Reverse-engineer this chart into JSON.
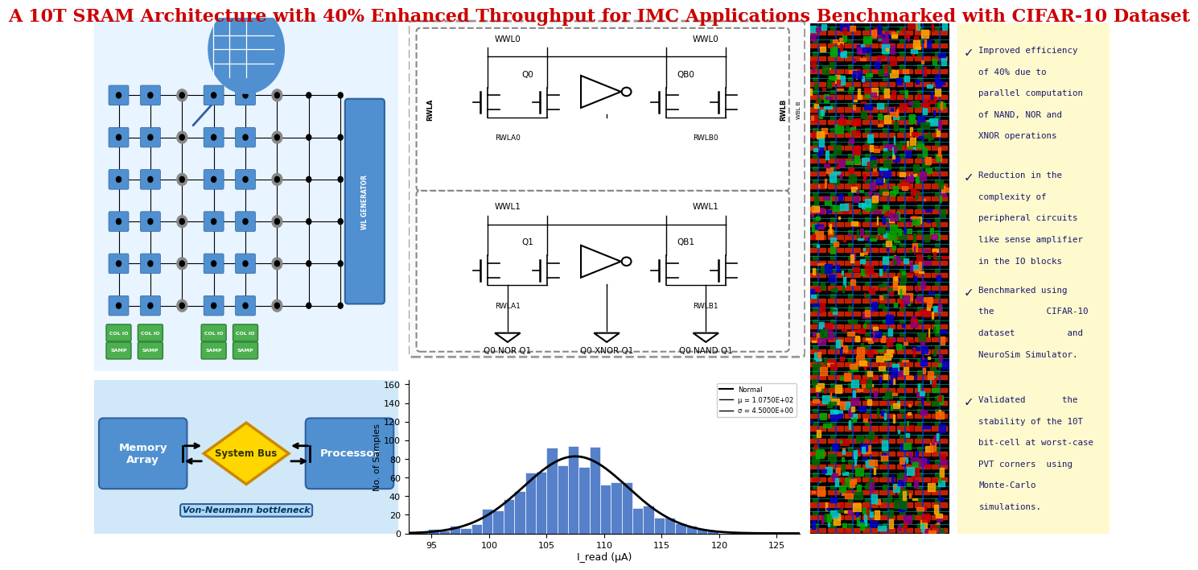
{
  "title": "A 10T SRAM Architecture with 40% Enhanced Throughput for IMC Applications Benchmarked with CIFAR-10 Dataset",
  "title_color": "#CC0000",
  "title_fontsize": 16,
  "bg_color": "#FFFFFF",
  "panel_bg": "#F0F0FF",
  "bullet_bg": "#FFFACD",
  "bullet_text_color": "#1a1a6e",
  "bullet_points": [
    [
      "Improved efficiency",
      "of 40% due to",
      "parallel computation",
      "of NAND, NOR and",
      "XNOR operations"
    ],
    [
      "Reduction in the",
      "complexity of",
      "peripheral circuits",
      "like sense amplifier",
      "in the IO blocks"
    ],
    [
      "Benchmarked using",
      "the          CIFAR-10",
      "dataset          and",
      "NeuroSim Simulator."
    ],
    [
      "Validated       the",
      "stability of the 10T",
      "bit-cell at worst-case",
      "PVT corners  using",
      "Monte-Carlo",
      "simulations."
    ]
  ],
  "hist_xlabel": "I_read (μA)",
  "hist_ylabel": "No. of Samples",
  "hist_mean": 107.5,
  "hist_std": 4.5,
  "hist_n": 1000,
  "hist_color": "#4472C4",
  "memory_array_text": "Memory\nArray",
  "processor_text": "Processor",
  "sysbus_text": "System Bus",
  "bottleneck_text": "Von-Neumann bottleneck",
  "wl_gen_text": "WL GENERATOR",
  "colio_labels": [
    "COL IO",
    "COL IO",
    "COL IO",
    "COL IO"
  ],
  "samp_labels": [
    "SAMP",
    "SAMP",
    "SAMP",
    "SAMP"
  ],
  "circuit_labels": [
    "Q0 NOR Q1",
    "Q0 XNOR Q1",
    "Q0 NAND Q1"
  ]
}
